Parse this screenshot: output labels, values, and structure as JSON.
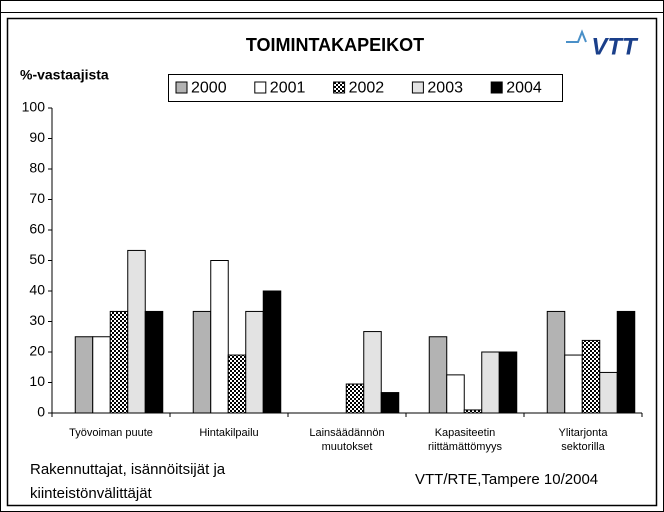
{
  "chart_data": {
    "type": "bar",
    "title": "TOIMINTAKAPEIKOT",
    "y_label": "%-vastaajista",
    "categories": [
      "Työvoiman puute",
      "Hintakilpailu",
      "Lainsäädännön\nmuutokset",
      "Kapasiteetin\nriittämättömyys",
      "Ylitarjonta\nsektorilla"
    ],
    "series": [
      {
        "name": "2000",
        "color": "#b3b3b3",
        "values": [
          25,
          33.3,
          0,
          25,
          33.3
        ]
      },
      {
        "name": "2001",
        "color": "#ffffff",
        "values": [
          25,
          50,
          0,
          12.5,
          19
        ]
      },
      {
        "name": "2002",
        "color": "#333333",
        "pattern": "checker",
        "values": [
          33.3,
          19,
          9.5,
          1,
          23.8
        ]
      },
      {
        "name": "2003",
        "color": "#e3e3e3",
        "values": [
          53.3,
          33.3,
          26.7,
          20,
          13.3
        ]
      },
      {
        "name": "2004",
        "color": "#000000",
        "values": [
          33.3,
          40,
          6.7,
          20,
          33.3
        ]
      }
    ],
    "ylim": [
      0,
      100
    ],
    "yticks": [
      0,
      10,
      20,
      30,
      40,
      50,
      60,
      70,
      80,
      90,
      100
    ],
    "grid": false,
    "source_left": "Rakennuttajat, isännöitsijät ja\nkiinteistönvälittäjät",
    "source_right": "VTT/RTE,Tampere 10/2004",
    "logo": "VTT"
  }
}
